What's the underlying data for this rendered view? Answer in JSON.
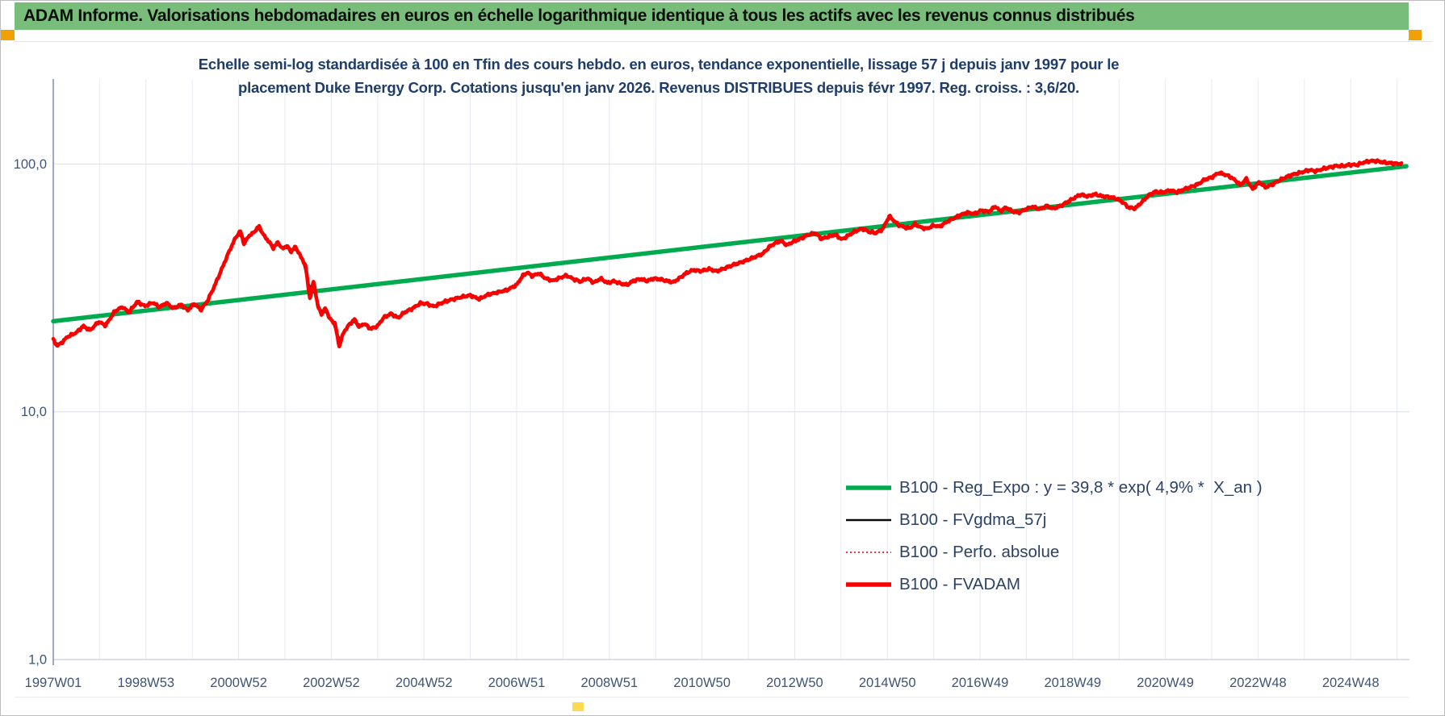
{
  "header": {
    "title": "ADAM Informe. Valorisations hebdomadaires en euros en échelle logarithmique identique à tous les actifs avec les revenus connus distribués",
    "bar_color": "#79bd7b",
    "accent_color": "#f2a104",
    "accent_bottom_color": "#ffd94f"
  },
  "chart": {
    "subtitle_line1": "Echelle semi-log standardisée à 100 en Tfin des cours hebdo. en euros, tendance exponentielle, lissage 57 j depuis janv 1997 pour le",
    "subtitle_line2": "placement Duke Energy Corp. Cotations jusqu'en janv 2026. Revenus DISTRIBUES depuis févr 1997. Reg. croiss. : 3,6/20.",
    "subtitle_color": "#1f3d6b"
  },
  "chart_data": {
    "type": "line",
    "title": "Echelle semi-log standardisée à 100 en Tfin des cours hebdo. en euros, tendance exponentielle, lissage 57 j depuis janv 1997 pour le placement Duke Energy Corp. Cotations jusqu'en janv 2026. Revenus DISTRIBUES depuis févr 1997. Reg. croiss. : 3,6/20.",
    "x_axis": {
      "label": "",
      "range_years": [
        1997.0,
        2026.3
      ],
      "tick_labels": [
        "1997W01",
        "1998W53",
        "2000W52",
        "2002W52",
        "2004W52",
        "2006W51",
        "2008W51",
        "2010W50",
        "2012W50",
        "2014W50",
        "2016W49",
        "2018W49",
        "2020W49",
        "2022W48",
        "2024W48"
      ],
      "gridlines": "yearly"
    },
    "y_axis": {
      "scale": "log10",
      "ticks": [
        {
          "label": "100,0",
          "value": 100
        },
        {
          "label": "10,0",
          "value": 10
        },
        {
          "label": "1,0",
          "value": 1
        }
      ],
      "range": [
        1,
        220
      ],
      "gridlines_at": [
        10,
        100
      ]
    },
    "legend": {
      "position": "inside-lower-right",
      "entries": [
        {
          "label": "B100 - Reg_Expo : y = 39,8 * exp( 4,9% *  X_an )",
          "color": "#00ab50",
          "style": "solid-thick"
        },
        {
          "label": "B100 - FVgdma_57j",
          "color": "#0a0a0a",
          "style": "solid-thin"
        },
        {
          "label": "B100 - Perfo. absolue",
          "color": "#e00000",
          "style": "dotted"
        },
        {
          "label": "B100 - FVADAM",
          "color": "#fc0000",
          "style": "solid-thick"
        }
      ]
    },
    "series": [
      {
        "name": "B100 - Reg_Expo : y = 39,8 * exp( 4,9% *  X_an )",
        "type": "exponential-trend",
        "color": "#00ab50",
        "points": [
          [
            1997.0,
            23.2
          ],
          [
            2026.2,
            97.9
          ]
        ]
      },
      {
        "name": "B100 - FVgdma_57j",
        "type": "smoothed-moving-average",
        "window_days": 57,
        "derived_from": "B100 - FVADAM",
        "color": "#0a0a0a"
      },
      {
        "name": "B100 - Perfo. absolue",
        "type": "line-dotted",
        "coincides_with": "B100 - FVADAM",
        "color": "#e00000"
      },
      {
        "name": "B100 - FVADAM",
        "type": "line",
        "color": "#fc0000",
        "points": [
          [
            1997.0,
            19.5
          ],
          [
            1997.08,
            18.5
          ],
          [
            1997.17,
            18.9
          ],
          [
            1997.31,
            20.1
          ],
          [
            1997.5,
            20.9
          ],
          [
            1997.65,
            22.2
          ],
          [
            1997.79,
            21.3
          ],
          [
            1997.98,
            23.1
          ],
          [
            1998.13,
            22.3
          ],
          [
            1998.33,
            25.5
          ],
          [
            1998.5,
            26.5
          ],
          [
            1998.63,
            25.1
          ],
          [
            1998.81,
            27.8
          ],
          [
            1998.98,
            26.7
          ],
          [
            1999.15,
            27.6
          ],
          [
            1999.29,
            26.4
          ],
          [
            1999.44,
            27.5
          ],
          [
            1999.6,
            26.1
          ],
          [
            1999.75,
            27.1
          ],
          [
            1999.9,
            25.7
          ],
          [
            2000.04,
            27.3
          ],
          [
            2000.19,
            25.8
          ],
          [
            2000.33,
            28.1
          ],
          [
            2000.48,
            32.2
          ],
          [
            2000.63,
            37.4
          ],
          [
            2000.79,
            44.2
          ],
          [
            2000.94,
            50.7
          ],
          [
            2001.04,
            53.6
          ],
          [
            2001.12,
            47.4
          ],
          [
            2001.21,
            51.1
          ],
          [
            2001.31,
            52.6
          ],
          [
            2001.44,
            56.1
          ],
          [
            2001.54,
            51.6
          ],
          [
            2001.65,
            48.7
          ],
          [
            2001.75,
            45.8
          ],
          [
            2001.85,
            48.4
          ],
          [
            2001.94,
            45.4
          ],
          [
            2002.04,
            46.8
          ],
          [
            2002.13,
            44.3
          ],
          [
            2002.23,
            46.3
          ],
          [
            2002.33,
            42.6
          ],
          [
            2002.44,
            39.2
          ],
          [
            2002.54,
            28.5
          ],
          [
            2002.62,
            33.8
          ],
          [
            2002.71,
            26.6
          ],
          [
            2002.79,
            24.8
          ],
          [
            2002.88,
            26.2
          ],
          [
            2002.96,
            23.8
          ],
          [
            2003.08,
            22.7
          ],
          [
            2003.17,
            18.4
          ],
          [
            2003.27,
            21.0
          ],
          [
            2003.38,
            22.4
          ],
          [
            2003.5,
            23.6
          ],
          [
            2003.6,
            22.0
          ],
          [
            2003.71,
            22.7
          ],
          [
            2003.85,
            21.6
          ],
          [
            2004.0,
            22.2
          ],
          [
            2004.13,
            24.0
          ],
          [
            2004.29,
            24.9
          ],
          [
            2004.44,
            23.9
          ],
          [
            2004.58,
            25.2
          ],
          [
            2004.75,
            26.1
          ],
          [
            2004.92,
            27.4
          ],
          [
            2005.06,
            27.3
          ],
          [
            2005.21,
            26.6
          ],
          [
            2005.4,
            27.6
          ],
          [
            2005.58,
            28.3
          ],
          [
            2005.79,
            29.0
          ],
          [
            2006.0,
            29.5
          ],
          [
            2006.19,
            28.5
          ],
          [
            2006.38,
            29.7
          ],
          [
            2006.58,
            30.3
          ],
          [
            2006.79,
            31.0
          ],
          [
            2007.0,
            32.5
          ],
          [
            2007.13,
            35.4
          ],
          [
            2007.23,
            36.5
          ],
          [
            2007.33,
            35.3
          ],
          [
            2007.48,
            36.2
          ],
          [
            2007.63,
            34.5
          ],
          [
            2007.79,
            33.8
          ],
          [
            2007.94,
            34.8
          ],
          [
            2008.08,
            35.5
          ],
          [
            2008.23,
            34.3
          ],
          [
            2008.38,
            33.5
          ],
          [
            2008.52,
            34.6
          ],
          [
            2008.67,
            33.2
          ],
          [
            2008.81,
            34.5
          ],
          [
            2008.96,
            33.1
          ],
          [
            2009.1,
            33.7
          ],
          [
            2009.25,
            32.9
          ],
          [
            2009.38,
            32.5
          ],
          [
            2009.52,
            33.8
          ],
          [
            2009.67,
            34.4
          ],
          [
            2009.81,
            33.7
          ],
          [
            2009.96,
            34.5
          ],
          [
            2010.1,
            34.3
          ],
          [
            2010.25,
            33.7
          ],
          [
            2010.38,
            33.3
          ],
          [
            2010.52,
            34.7
          ],
          [
            2010.67,
            36.4
          ],
          [
            2010.81,
            37.3
          ],
          [
            2010.98,
            37.0
          ],
          [
            2011.15,
            37.7
          ],
          [
            2011.31,
            36.9
          ],
          [
            2011.48,
            37.9
          ],
          [
            2011.63,
            38.9
          ],
          [
            2011.81,
            39.9
          ],
          [
            2011.98,
            41.0
          ],
          [
            2012.15,
            42.2
          ],
          [
            2012.31,
            43.4
          ],
          [
            2012.46,
            46.4
          ],
          [
            2012.58,
            48.0
          ],
          [
            2012.71,
            49.0
          ],
          [
            2012.83,
            47.0
          ],
          [
            2012.98,
            48.7
          ],
          [
            2013.13,
            50.0
          ],
          [
            2013.29,
            51.7
          ],
          [
            2013.44,
            52.7
          ],
          [
            2013.58,
            49.9
          ],
          [
            2013.73,
            50.9
          ],
          [
            2013.88,
            51.9
          ],
          [
            2014.02,
            49.6
          ],
          [
            2014.17,
            51.6
          ],
          [
            2014.31,
            53.6
          ],
          [
            2014.46,
            54.9
          ],
          [
            2014.6,
            53.3
          ],
          [
            2014.75,
            52.7
          ],
          [
            2014.9,
            54.6
          ],
          [
            2015.04,
            61.6
          ],
          [
            2015.13,
            59.4
          ],
          [
            2015.23,
            56.9
          ],
          [
            2015.35,
            55.7
          ],
          [
            2015.48,
            55.1
          ],
          [
            2015.6,
            57.2
          ],
          [
            2015.71,
            55.6
          ],
          [
            2015.85,
            54.8
          ],
          [
            2016.0,
            56.5
          ],
          [
            2016.13,
            55.9
          ],
          [
            2016.29,
            58.6
          ],
          [
            2016.44,
            60.5
          ],
          [
            2016.58,
            62.3
          ],
          [
            2016.73,
            63.7
          ],
          [
            2016.88,
            62.9
          ],
          [
            2017.02,
            64.9
          ],
          [
            2017.19,
            64.2
          ],
          [
            2017.33,
            67.5
          ],
          [
            2017.44,
            64.5
          ],
          [
            2017.56,
            66.8
          ],
          [
            2017.69,
            64.5
          ],
          [
            2017.83,
            63.6
          ],
          [
            2017.98,
            65.6
          ],
          [
            2018.13,
            67.2
          ],
          [
            2018.29,
            65.7
          ],
          [
            2018.44,
            67.8
          ],
          [
            2018.58,
            66.0
          ],
          [
            2018.73,
            67.7
          ],
          [
            2018.88,
            70.1
          ],
          [
            2019.02,
            72.7
          ],
          [
            2019.17,
            75.3
          ],
          [
            2019.33,
            74.1
          ],
          [
            2019.48,
            75.5
          ],
          [
            2019.63,
            74.2
          ],
          [
            2019.79,
            73.6
          ],
          [
            2019.94,
            72.5
          ],
          [
            2020.08,
            70.1
          ],
          [
            2020.21,
            66.7
          ],
          [
            2020.35,
            66.2
          ],
          [
            2020.5,
            70.4
          ],
          [
            2020.65,
            75.1
          ],
          [
            2020.79,
            77.4
          ],
          [
            2020.94,
            76.7
          ],
          [
            2021.1,
            78.3
          ],
          [
            2021.25,
            76.9
          ],
          [
            2021.4,
            79.0
          ],
          [
            2021.56,
            80.9
          ],
          [
            2021.71,
            83.0
          ],
          [
            2021.85,
            86.5
          ],
          [
            2022.0,
            88.3
          ],
          [
            2022.15,
            92.2
          ],
          [
            2022.25,
            91.1
          ],
          [
            2022.38,
            89.2
          ],
          [
            2022.52,
            85.6
          ],
          [
            2022.62,
            82.2
          ],
          [
            2022.75,
            87.1
          ],
          [
            2022.88,
            79.0
          ],
          [
            2023.02,
            84.4
          ],
          [
            2023.17,
            80.5
          ],
          [
            2023.33,
            83.1
          ],
          [
            2023.48,
            86.3
          ],
          [
            2023.63,
            89.0
          ],
          [
            2023.79,
            91.1
          ],
          [
            2023.96,
            92.7
          ],
          [
            2024.1,
            94.6
          ],
          [
            2024.25,
            93.5
          ],
          [
            2024.4,
            95.6
          ],
          [
            2024.54,
            96.9
          ],
          [
            2024.69,
            98.3
          ],
          [
            2024.83,
            98.0
          ],
          [
            2024.98,
            99.4
          ],
          [
            2025.13,
            99.1
          ],
          [
            2025.27,
            101.4
          ],
          [
            2025.42,
            102.8
          ],
          [
            2025.56,
            102.9
          ],
          [
            2025.71,
            101.4
          ],
          [
            2025.85,
            100.8
          ],
          [
            2026.0,
            100.3
          ],
          [
            2026.1,
            100.3
          ]
        ]
      }
    ]
  }
}
